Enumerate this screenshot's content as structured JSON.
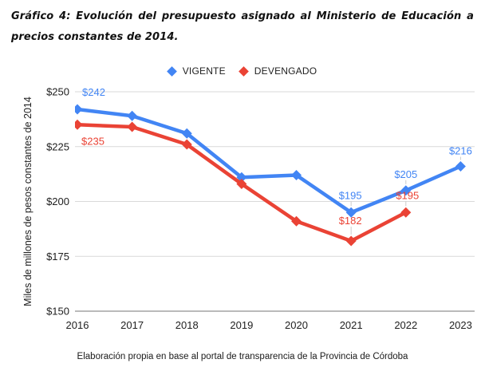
{
  "title": "Gráfico 4: Evolución del presupuesto asignado al Ministerio de Educación a precios constantes de 2014.",
  "source_note": "Elaboración propia en base al portal de transparencia de la Provincia de Córdoba",
  "chart_data": {
    "type": "line",
    "title": "Gráfico 4: Evolución del presupuesto asignado al Ministerio de Educación a precios constantes de 2014.",
    "x_categories": [
      "2016",
      "2017",
      "2018",
      "2019",
      "2020",
      "2021",
      "2022",
      "2023"
    ],
    "ylabel": "Miles de millones de pesos constantes de 2014",
    "ylim": [
      150,
      250
    ],
    "yticks": [
      150,
      175,
      200,
      225,
      250
    ],
    "ytick_prefix": "$",
    "grid": true,
    "legend_position": "top",
    "marker": "diamond",
    "colors": {
      "vigente": "#4285F4",
      "devengado": "#EA4335",
      "gridline": "#d9d9d9",
      "axis_line": "#757575",
      "tick_text": "#212121"
    },
    "series": [
      {
        "name": "VIGENTE",
        "color": "#4285F4",
        "values": [
          242,
          239,
          231,
          211,
          212,
          195,
          205,
          216
        ],
        "point_labels": [
          {
            "index": 0,
            "text": "$242",
            "dx": 6,
            "dy": -17,
            "anchor": "start"
          },
          {
            "index": 5,
            "text": "$195",
            "dx": -1,
            "dy": -17,
            "anchor": "middle"
          },
          {
            "index": 6,
            "text": "$205",
            "dx": 0,
            "dy": -16,
            "anchor": "middle"
          },
          {
            "index": 7,
            "text": "$216",
            "dx": 0,
            "dy": -15,
            "anchor": "middle"
          }
        ]
      },
      {
        "name": "DEVENGADO",
        "color": "#EA4335",
        "values": [
          235,
          234,
          226,
          208,
          191,
          182,
          195,
          null
        ],
        "point_labels": [
          {
            "index": 0,
            "text": "$235",
            "dx": 5,
            "dy": 25,
            "anchor": "start"
          },
          {
            "index": 5,
            "text": "$182",
            "dx": -1,
            "dy": -21,
            "anchor": "middle"
          },
          {
            "index": 6,
            "text": "$195",
            "dx": 2,
            "dy": -17,
            "anchor": "middle"
          }
        ]
      }
    ]
  }
}
